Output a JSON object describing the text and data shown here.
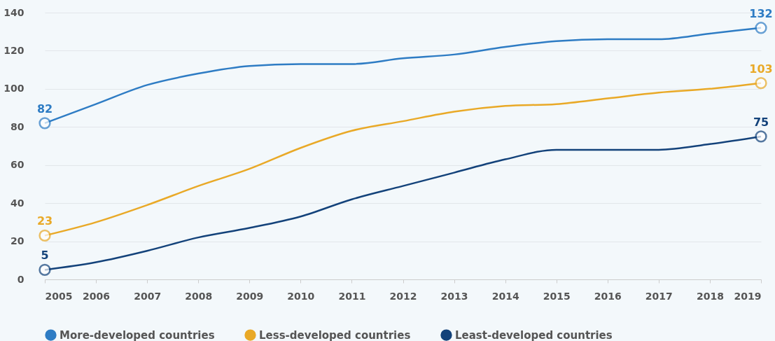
{
  "chart_data": {
    "type": "line",
    "x": [
      2005,
      2006,
      2007,
      2008,
      2009,
      2010,
      2011,
      2012,
      2013,
      2014,
      2015,
      2016,
      2017,
      2018,
      2019
    ],
    "xlim": [
      2005,
      2019
    ],
    "xticks": [
      2005,
      2006,
      2007,
      2008,
      2009,
      2010,
      2011,
      2012,
      2013,
      2014,
      2015,
      2016,
      2017,
      2018,
      2019
    ],
    "ylim": [
      0,
      140
    ],
    "yticks": [
      0,
      20,
      40,
      60,
      80,
      100,
      120,
      140
    ],
    "grid": "y",
    "legend": "bottom",
    "marker": "none",
    "line_style": "solid",
    "series": [
      {
        "name": "More-developed countries",
        "color": "#2e7cc4",
        "values": [
          82,
          92,
          102,
          108,
          112,
          113,
          113,
          116,
          118,
          122,
          125,
          126,
          126,
          129,
          132
        ],
        "value_labels": [
          "82",
          null,
          null,
          null,
          null,
          null,
          null,
          null,
          null,
          null,
          null,
          null,
          null,
          null,
          "132"
        ]
      },
      {
        "name": "Less-developed countries",
        "color": "#e9a927",
        "values": [
          23,
          30,
          39,
          49,
          58,
          69,
          78,
          83,
          88,
          91,
          92,
          95,
          98,
          100,
          103
        ],
        "value_labels": [
          "23",
          null,
          null,
          null,
          null,
          null,
          null,
          null,
          null,
          null,
          null,
          null,
          null,
          null,
          "103"
        ]
      },
      {
        "name": "Least-developed countries",
        "color": "#13427a",
        "values": [
          5,
          9,
          15,
          22,
          27,
          33,
          42,
          49,
          56,
          63,
          68,
          68,
          68,
          71,
          75
        ],
        "value_labels": [
          "5",
          null,
          null,
          null,
          null,
          null,
          null,
          null,
          null,
          null,
          null,
          null,
          null,
          null,
          "75"
        ]
      }
    ]
  }
}
